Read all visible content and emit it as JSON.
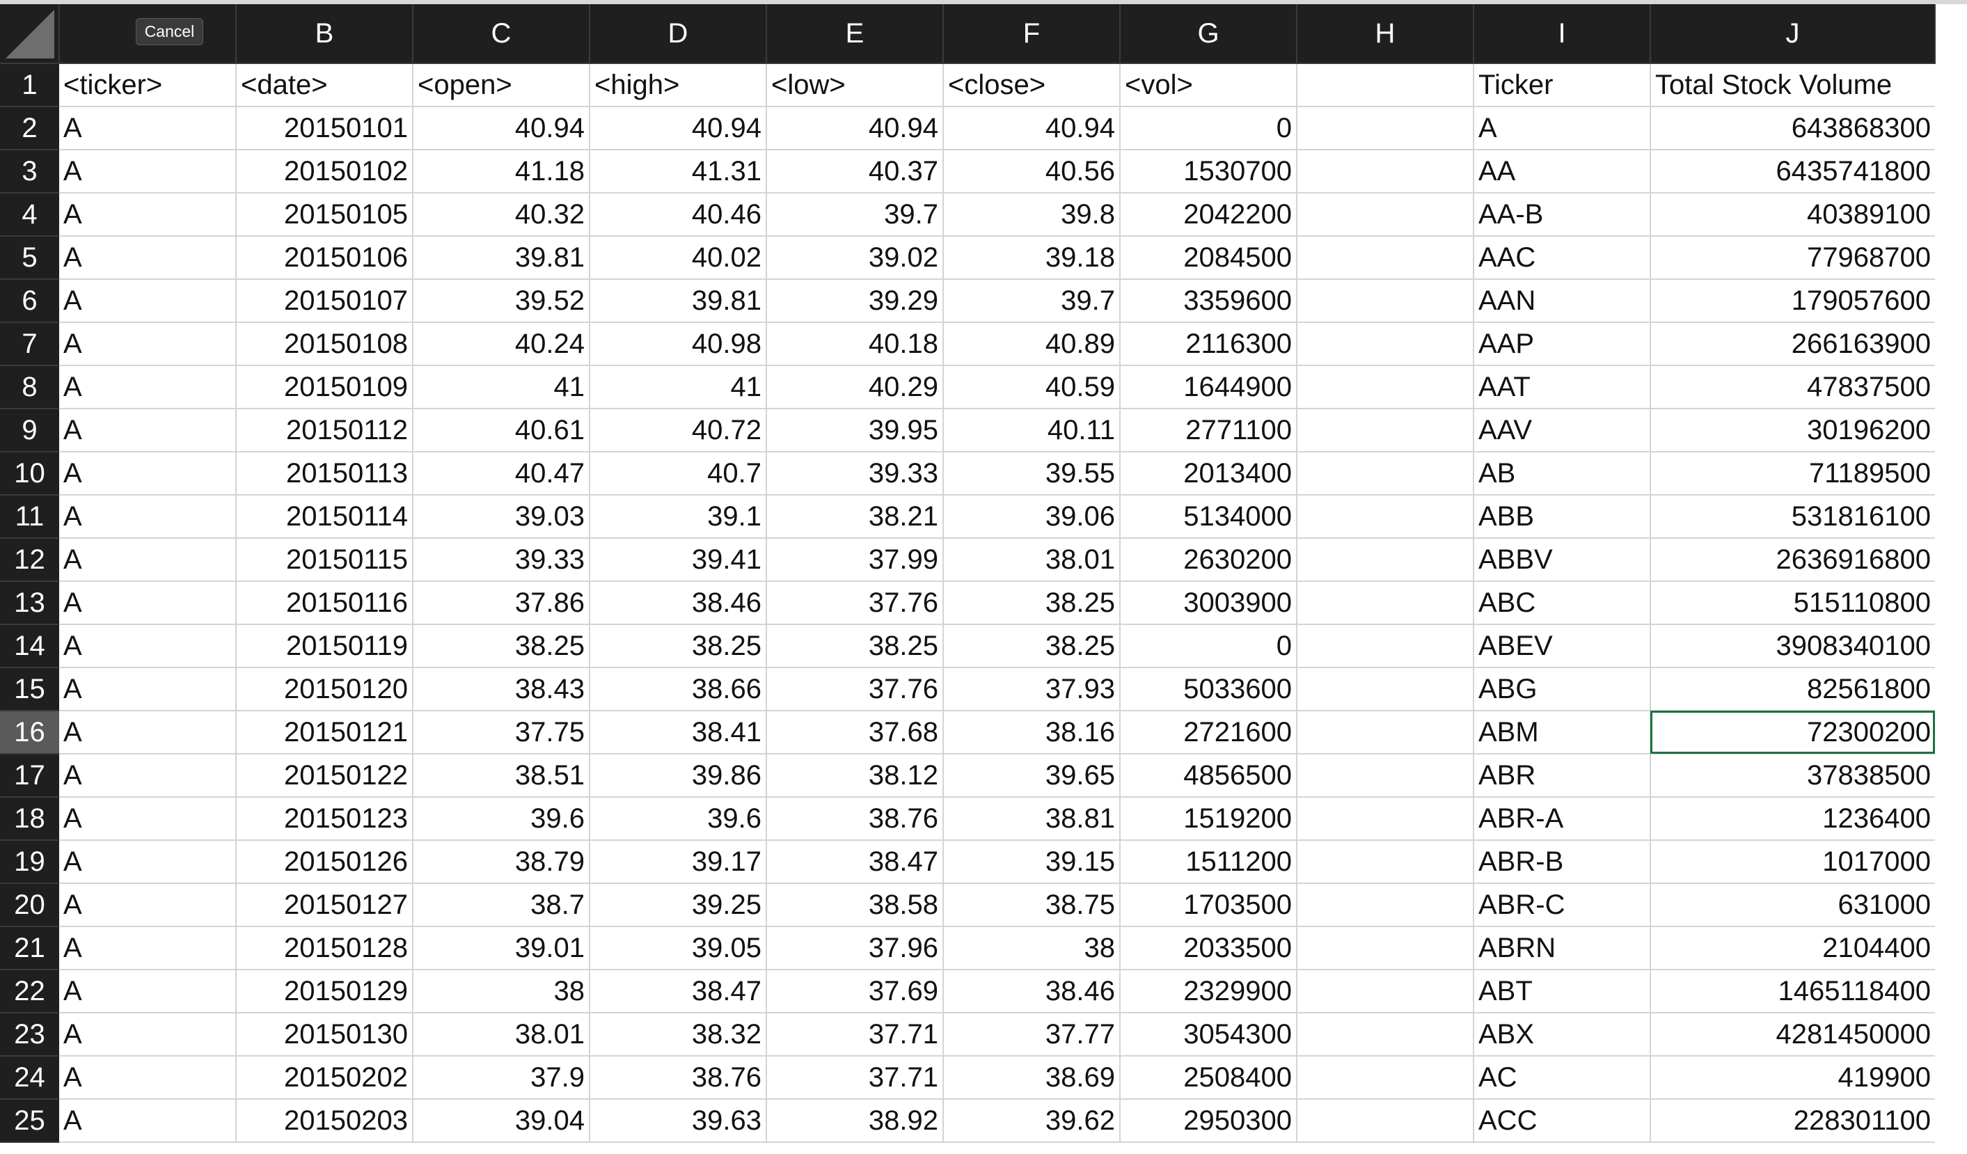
{
  "toolbar": {
    "cancel_label": "Cancel"
  },
  "columns": [
    "B",
    "C",
    "D",
    "E",
    "F",
    "G",
    "H",
    "I",
    "J"
  ],
  "column_a_label": "",
  "rows": [
    {
      "n": "1",
      "a": "<ticker>",
      "b": "<date>",
      "c": "<open>",
      "d": "<high>",
      "e": "<low>",
      "f": "<close>",
      "g": "<vol>",
      "h": "",
      "i": "Ticker",
      "j": "Total Stock Volume"
    },
    {
      "n": "2",
      "a": "A",
      "b": "20150101",
      "c": "40.94",
      "d": "40.94",
      "e": "40.94",
      "f": "40.94",
      "g": "0",
      "h": "",
      "i": "A",
      "j": "643868300"
    },
    {
      "n": "3",
      "a": "A",
      "b": "20150102",
      "c": "41.18",
      "d": "41.31",
      "e": "40.37",
      "f": "40.56",
      "g": "1530700",
      "h": "",
      "i": "AA",
      "j": "6435741800"
    },
    {
      "n": "4",
      "a": "A",
      "b": "20150105",
      "c": "40.32",
      "d": "40.46",
      "e": "39.7",
      "f": "39.8",
      "g": "2042200",
      "h": "",
      "i": "AA-B",
      "j": "40389100"
    },
    {
      "n": "5",
      "a": "A",
      "b": "20150106",
      "c": "39.81",
      "d": "40.02",
      "e": "39.02",
      "f": "39.18",
      "g": "2084500",
      "h": "",
      "i": "AAC",
      "j": "77968700"
    },
    {
      "n": "6",
      "a": "A",
      "b": "20150107",
      "c": "39.52",
      "d": "39.81",
      "e": "39.29",
      "f": "39.7",
      "g": "3359600",
      "h": "",
      "i": "AAN",
      "j": "179057600"
    },
    {
      "n": "7",
      "a": "A",
      "b": "20150108",
      "c": "40.24",
      "d": "40.98",
      "e": "40.18",
      "f": "40.89",
      "g": "2116300",
      "h": "",
      "i": "AAP",
      "j": "266163900"
    },
    {
      "n": "8",
      "a": "A",
      "b": "20150109",
      "c": "41",
      "d": "41",
      "e": "40.29",
      "f": "40.59",
      "g": "1644900",
      "h": "",
      "i": "AAT",
      "j": "47837500"
    },
    {
      "n": "9",
      "a": "A",
      "b": "20150112",
      "c": "40.61",
      "d": "40.72",
      "e": "39.95",
      "f": "40.11",
      "g": "2771100",
      "h": "",
      "i": "AAV",
      "j": "30196200"
    },
    {
      "n": "10",
      "a": "A",
      "b": "20150113",
      "c": "40.47",
      "d": "40.7",
      "e": "39.33",
      "f": "39.55",
      "g": "2013400",
      "h": "",
      "i": "AB",
      "j": "71189500"
    },
    {
      "n": "11",
      "a": "A",
      "b": "20150114",
      "c": "39.03",
      "d": "39.1",
      "e": "38.21",
      "f": "39.06",
      "g": "5134000",
      "h": "",
      "i": "ABB",
      "j": "531816100"
    },
    {
      "n": "12",
      "a": "A",
      "b": "20150115",
      "c": "39.33",
      "d": "39.41",
      "e": "37.99",
      "f": "38.01",
      "g": "2630200",
      "h": "",
      "i": "ABBV",
      "j": "2636916800"
    },
    {
      "n": "13",
      "a": "A",
      "b": "20150116",
      "c": "37.86",
      "d": "38.46",
      "e": "37.76",
      "f": "38.25",
      "g": "3003900",
      "h": "",
      "i": "ABC",
      "j": "515110800"
    },
    {
      "n": "14",
      "a": "A",
      "b": "20150119",
      "c": "38.25",
      "d": "38.25",
      "e": "38.25",
      "f": "38.25",
      "g": "0",
      "h": "",
      "i": "ABEV",
      "j": "3908340100"
    },
    {
      "n": "15",
      "a": "A",
      "b": "20150120",
      "c": "38.43",
      "d": "38.66",
      "e": "37.76",
      "f": "37.93",
      "g": "5033600",
      "h": "",
      "i": "ABG",
      "j": "82561800"
    },
    {
      "n": "16",
      "a": "A",
      "b": "20150121",
      "c": "37.75",
      "d": "38.41",
      "e": "37.68",
      "f": "38.16",
      "g": "2721600",
      "h": "",
      "i": "ABM",
      "j": "72300200"
    },
    {
      "n": "17",
      "a": "A",
      "b": "20150122",
      "c": "38.51",
      "d": "39.86",
      "e": "38.12",
      "f": "39.65",
      "g": "4856500",
      "h": "",
      "i": "ABR",
      "j": "37838500"
    },
    {
      "n": "18",
      "a": "A",
      "b": "20150123",
      "c": "39.6",
      "d": "39.6",
      "e": "38.76",
      "f": "38.81",
      "g": "1519200",
      "h": "",
      "i": "ABR-A",
      "j": "1236400"
    },
    {
      "n": "19",
      "a": "A",
      "b": "20150126",
      "c": "38.79",
      "d": "39.17",
      "e": "38.47",
      "f": "39.15",
      "g": "1511200",
      "h": "",
      "i": "ABR-B",
      "j": "1017000"
    },
    {
      "n": "20",
      "a": "A",
      "b": "20150127",
      "c": "38.7",
      "d": "39.25",
      "e": "38.58",
      "f": "38.75",
      "g": "1703500",
      "h": "",
      "i": "ABR-C",
      "j": "631000"
    },
    {
      "n": "21",
      "a": "A",
      "b": "20150128",
      "c": "39.01",
      "d": "39.05",
      "e": "37.96",
      "f": "38",
      "g": "2033500",
      "h": "",
      "i": "ABRN",
      "j": "2104400"
    },
    {
      "n": "22",
      "a": "A",
      "b": "20150129",
      "c": "38",
      "d": "38.47",
      "e": "37.69",
      "f": "38.46",
      "g": "2329900",
      "h": "",
      "i": "ABT",
      "j": "1465118400"
    },
    {
      "n": "23",
      "a": "A",
      "b": "20150130",
      "c": "38.01",
      "d": "38.32",
      "e": "37.71",
      "f": "37.77",
      "g": "3054300",
      "h": "",
      "i": "ABX",
      "j": "4281450000"
    },
    {
      "n": "24",
      "a": "A",
      "b": "20150202",
      "c": "37.9",
      "d": "38.76",
      "e": "37.71",
      "f": "38.69",
      "g": "2508400",
      "h": "",
      "i": "AC",
      "j": "419900"
    },
    {
      "n": "25",
      "a": "A",
      "b": "20150203",
      "c": "39.04",
      "d": "39.63",
      "e": "38.92",
      "f": "39.62",
      "g": "2950300",
      "h": "",
      "i": "ACC",
      "j": "228301100"
    }
  ],
  "selected_row": "16",
  "active_cell": "J16"
}
